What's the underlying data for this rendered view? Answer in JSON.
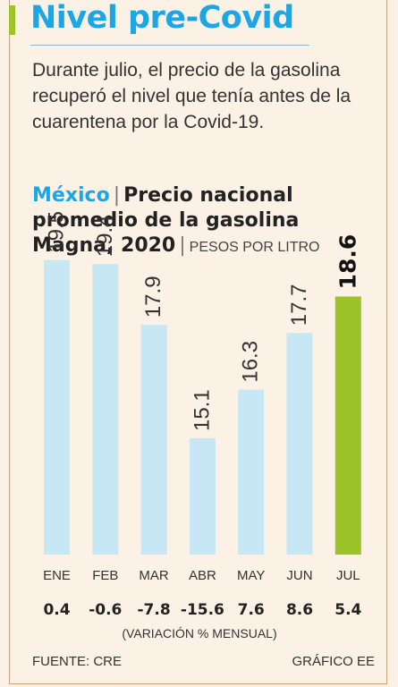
{
  "headline": "Nivel pre-Covid",
  "intro": "Durante julio, el precio de la gasolina recuperó el nivel que tenía antes de la cuarentena por la Covid-19.",
  "chart_title": {
    "country": "México",
    "title": "Precio nacional promedio de la gasolina Magna, 2020",
    "unit": "PESOS POR LITRO"
  },
  "chart_data": {
    "type": "bar",
    "title": "Precio nacional promedio de la gasolina Magna, 2020",
    "ylabel": "PESOS POR LITRO",
    "categories": [
      "ENE",
      "FEB",
      "MAR",
      "ABR",
      "MAY",
      "JUN",
      "JUL"
    ],
    "values": [
      19.5,
      19.4,
      17.9,
      15.1,
      16.3,
      17.7,
      18.6
    ],
    "value_labels": [
      "19.5",
      "19.4",
      "17.9",
      "15.1",
      "16.3",
      "17.7",
      "18.6"
    ],
    "variation": [
      "0.4",
      "-0.6",
      "-7.8",
      "-15.6",
      "7.6",
      "8.6",
      "5.4"
    ],
    "variation_label": "(VARIACIÓN % MENSUAL)",
    "highlight_index": 6,
    "colors": {
      "bar": "#c8e7f5",
      "highlight": "#9cc42a"
    },
    "grid": false,
    "legend": "none"
  },
  "footer": {
    "source": "FUENTE: CRE",
    "credit": "GRÁFICO EE"
  }
}
